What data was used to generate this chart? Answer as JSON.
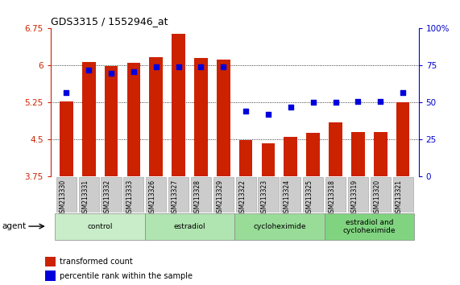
{
  "title": "GDS3315 / 1552946_at",
  "samples": [
    "GSM213330",
    "GSM213331",
    "GSM213332",
    "GSM213333",
    "GSM213326",
    "GSM213327",
    "GSM213328",
    "GSM213329",
    "GSM213322",
    "GSM213323",
    "GSM213324",
    "GSM213325",
    "GSM213318",
    "GSM213319",
    "GSM213320",
    "GSM213321"
  ],
  "bar_values": [
    5.28,
    6.07,
    5.99,
    6.05,
    6.17,
    6.65,
    6.15,
    6.12,
    4.49,
    4.43,
    4.56,
    4.63,
    4.85,
    4.66,
    4.66,
    5.25
  ],
  "dot_values": [
    57,
    72,
    70,
    71,
    74,
    74,
    74,
    74,
    44,
    42,
    47,
    50,
    50,
    51,
    51,
    57
  ],
  "ylim_left": [
    3.75,
    6.75
  ],
  "ylim_right": [
    0,
    100
  ],
  "yticks_left": [
    3.75,
    4.5,
    5.25,
    6.0,
    6.75
  ],
  "ytick_labels_left": [
    "3.75",
    "4.5",
    "5.25",
    "6",
    "6.75"
  ],
  "yticks_right": [
    0,
    25,
    50,
    75,
    100
  ],
  "ytick_labels_right": [
    "0",
    "25",
    "50",
    "75",
    "100%"
  ],
  "groups": [
    {
      "label": "control",
      "start": 0,
      "end": 4,
      "color": "#c8edc8"
    },
    {
      "label": "estradiol",
      "start": 4,
      "end": 8,
      "color": "#b0e4b0"
    },
    {
      "label": "cycloheximide",
      "start": 8,
      "end": 12,
      "color": "#98dc98"
    },
    {
      "label": "estradiol and\ncycloheximide",
      "start": 12,
      "end": 16,
      "color": "#80d480"
    }
  ],
  "agent_label": "agent",
  "bar_color": "#cc2200",
  "dot_color": "#0000dd",
  "bar_width": 0.6,
  "left_axis_color": "#cc2200",
  "right_axis_color": "#0000cc",
  "legend_labels": [
    "transformed count",
    "percentile rank within the sample"
  ],
  "dotgrid_lines": [
    6.0,
    5.25,
    4.5
  ],
  "tick_bg_color": "#cccccc"
}
